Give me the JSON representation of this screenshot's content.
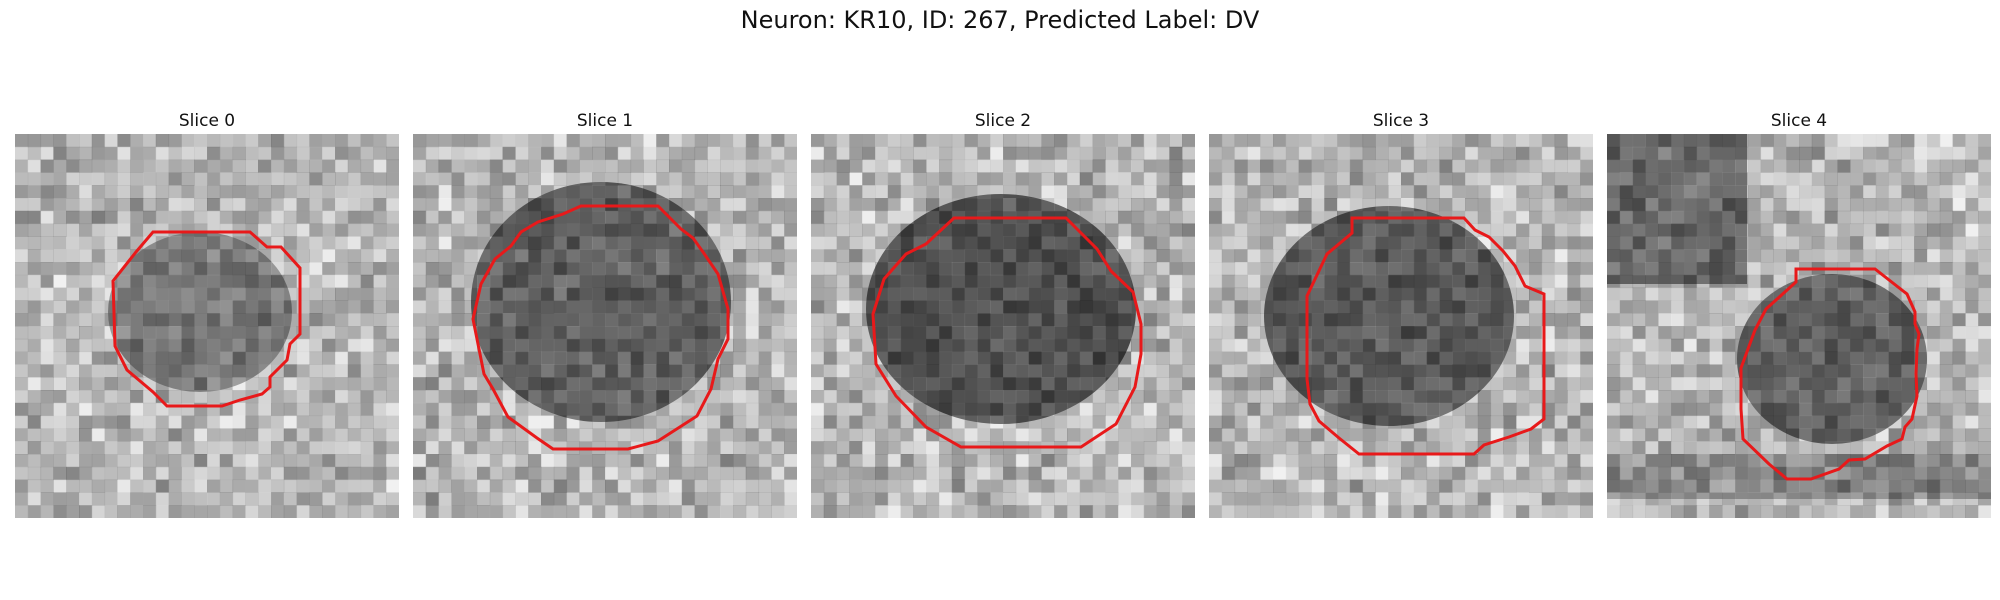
{
  "figure": {
    "title": "Neuron: KR10, ID: 267, Predicted Label: DV",
    "contour_color": "#e8191a"
  },
  "panels": [
    {
      "title": "Slice 0"
    },
    {
      "title": "Slice 1"
    },
    {
      "title": "Slice 2"
    },
    {
      "title": "Slice 3"
    },
    {
      "title": "Slice 4"
    }
  ]
}
